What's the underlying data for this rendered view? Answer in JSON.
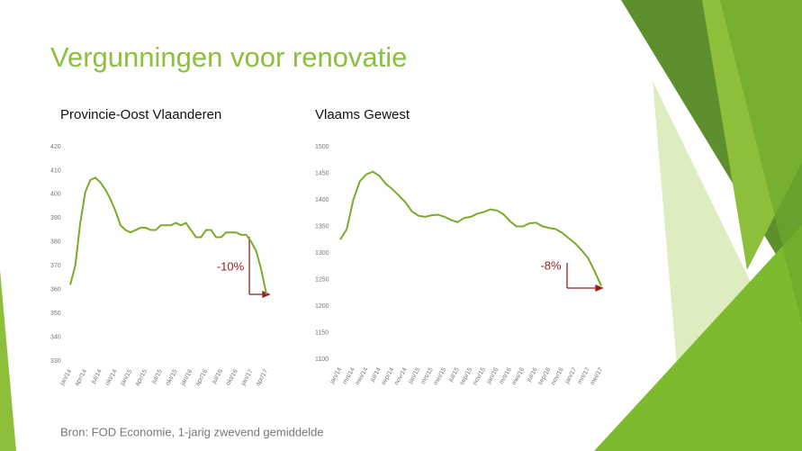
{
  "title": "Vergunningen voor renovatie",
  "source": "Bron: FOD Economie, 1-jarig zwevend gemiddelde",
  "chart_data": [
    {
      "type": "line",
      "title": "Provincie-Oost Vlaanderen",
      "color": "#7aab2a",
      "annotation": "-10%",
      "categories": [
        "jan/14",
        null,
        null,
        "apr/14",
        null,
        null,
        "jul/14",
        null,
        null,
        "okt/14",
        null,
        null,
        "jan/15",
        null,
        null,
        "apr/15",
        null,
        null,
        "jul/15",
        null,
        null,
        "okt/15",
        null,
        null,
        "jan/16",
        null,
        null,
        "apr/16",
        null,
        null,
        "jul/16",
        null,
        null,
        "okt/16",
        null,
        null,
        "jan/17",
        null,
        null,
        "apr/17"
      ],
      "values": [
        362,
        370,
        388,
        401,
        406,
        407,
        405,
        402,
        398,
        393,
        387,
        385,
        384,
        385,
        386,
        386,
        385,
        385,
        387,
        387,
        387,
        388,
        387,
        388,
        385,
        382,
        382,
        385,
        385,
        382,
        382,
        384,
        384,
        384,
        383,
        383,
        380,
        376,
        368,
        358
      ],
      "ylim": [
        330,
        420
      ],
      "yticks": [
        330,
        340,
        350,
        360,
        370,
        380,
        390,
        400,
        410,
        420
      ],
      "grid": false
    },
    {
      "type": "line",
      "title": "Vlaams Gewest",
      "color": "#7aab2a",
      "annotation": "-8%",
      "categories": [
        "jan/14",
        null,
        "mrt/14",
        null,
        "mei/14",
        null,
        "jul/14",
        null,
        "sep/14",
        null,
        "nov/14",
        null,
        "jan/15",
        null,
        "mrt/15",
        null,
        "mei/15",
        null,
        "jul/15",
        null,
        "sep/15",
        null,
        "nov/15",
        null,
        "jan/16",
        null,
        "mrt/16",
        null,
        "mei/16",
        null,
        "jul/16",
        null,
        "sep/16",
        null,
        "nov/16",
        null,
        "jan/17",
        null,
        "mrt/17",
        null,
        "mei/17"
      ],
      "values": [
        1325,
        1345,
        1400,
        1435,
        1448,
        1453,
        1445,
        1430,
        1420,
        1408,
        1395,
        1378,
        1370,
        1368,
        1371,
        1372,
        1368,
        1362,
        1358,
        1366,
        1368,
        1374,
        1377,
        1382,
        1380,
        1373,
        1360,
        1350,
        1350,
        1356,
        1357,
        1350,
        1347,
        1345,
        1338,
        1328,
        1318,
        1305,
        1290,
        1265,
        1238
      ],
      "ylim": [
        1100,
        1500
      ],
      "yticks": [
        1100,
        1150,
        1200,
        1250,
        1300,
        1350,
        1400,
        1450,
        1500
      ],
      "grid": false
    }
  ]
}
